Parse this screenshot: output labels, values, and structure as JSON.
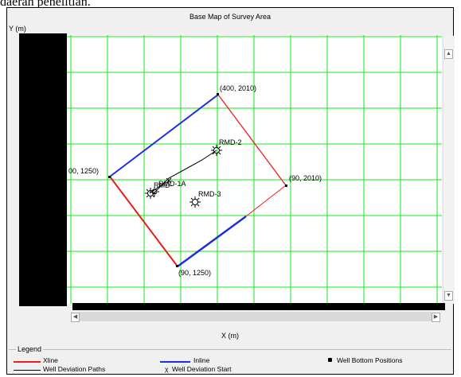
{
  "caption": "daerah penelitian.",
  "window": {
    "title": "Base Map of Survey Area",
    "y_axis_label": "Y (m)",
    "x_axis_label": "X (m)"
  },
  "map": {
    "corner_labels": [
      "(400, 2010)",
      "(90, 2010)",
      "(90, 1250)",
      "00, 1250)"
    ],
    "wells": [
      "RMD-2",
      "RMD-1A",
      "RMD-",
      "RMD-3"
    ]
  },
  "legend": {
    "title": "Legend",
    "items": {
      "xline": "Xline",
      "inline": "Inline",
      "well_bottom": "Well Bottom Positions",
      "well_paths": "Well Deviation Paths",
      "well_start": "Well Deviation Start"
    }
  },
  "colors": {
    "grid": "#19e619",
    "xline": "#ee1c1c",
    "inline": "#1c2ee0",
    "well_path": "#000000"
  },
  "icons": {
    "well_symbol": "sun-burst-well-icon",
    "scroll_up": "arrow-up-icon",
    "scroll_down": "arrow-down-icon",
    "scroll_left": "arrow-left-icon",
    "scroll_right": "arrow-right-icon"
  }
}
